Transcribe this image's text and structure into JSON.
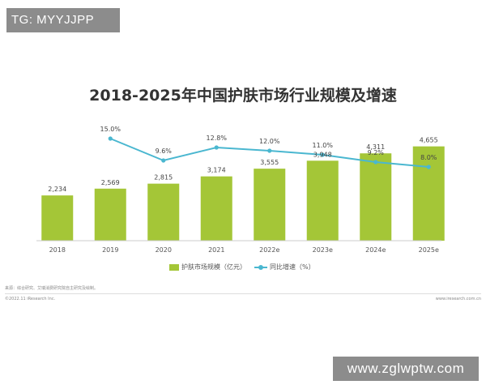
{
  "watermarks": {
    "top": "TG: MYYJJPP",
    "bottom": "www.zglwptw.com"
  },
  "footer": {
    "source": "来源：综合研究、艾瑞消费研究院自主研究及绘制。",
    "copyright": "©2022.11 iResearch Inc.",
    "site": "www.iresearch.com.cn"
  },
  "colors": {
    "bar": "#a4c637",
    "line": "#4ab7d0"
  },
  "chart_data": {
    "type": "bar+line",
    "title": "2018-2025年中国护肤市场行业规模及增速",
    "categories": [
      "2018",
      "2019",
      "2020",
      "2021",
      "2022e",
      "2023e",
      "2024e",
      "2025e"
    ],
    "series": [
      {
        "name": "护肤市场规模（亿元）",
        "type": "bar",
        "values": [
          2234,
          2569,
          2815,
          3174,
          3555,
          3948,
          4311,
          4655
        ],
        "labels": [
          "2,234",
          "2,569",
          "2,815",
          "3,174",
          "3,555",
          "3,948",
          "4,311",
          "4,655"
        ]
      },
      {
        "name": "同比增速（%）",
        "type": "line",
        "values": [
          null,
          15.0,
          9.6,
          12.8,
          12.0,
          11.0,
          9.2,
          8.0
        ],
        "labels": [
          "",
          "15.0%",
          "9.6%",
          "12.8%",
          "12.0%",
          "11.0%",
          "9.2%",
          "8.0%"
        ]
      }
    ],
    "legend": "bottom"
  }
}
